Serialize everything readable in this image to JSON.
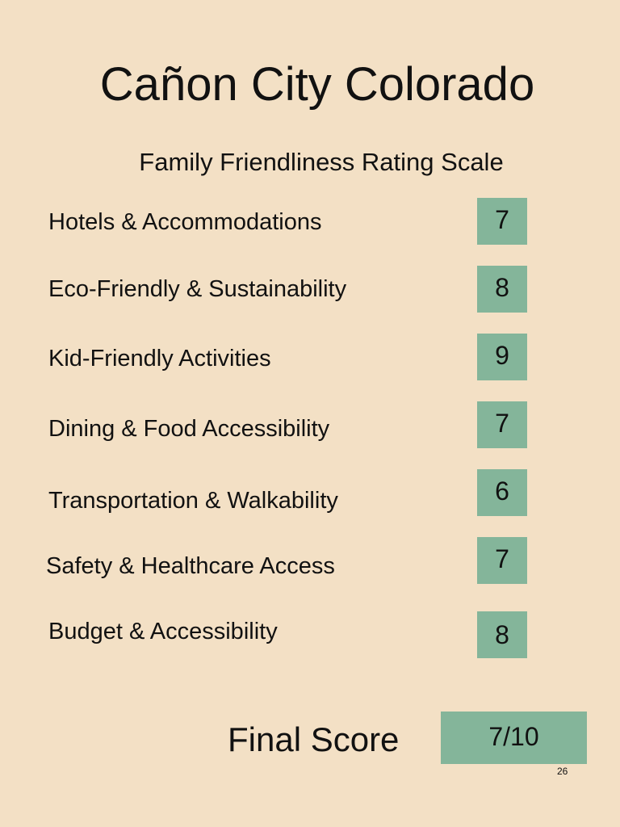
{
  "header": {
    "title": "Cañon City Colorado",
    "subtitle": "Family Friendliness Rating Scale"
  },
  "ratings": [
    {
      "label": "Hotels & Accommodations",
      "score": 7
    },
    {
      "label": "Eco-Friendly & Sustainability",
      "score": 8
    },
    {
      "label": "Kid-Friendly Activities",
      "score": 9
    },
    {
      "label": "Dining & Food Accessibility",
      "score": 7
    },
    {
      "label": "Transportation & Walkability",
      "score": 6
    },
    {
      "label": "Safety & Healthcare Access",
      "score": 7
    },
    {
      "label": "Budget & Accessibility",
      "score": 8
    }
  ],
  "final": {
    "label": "Final Score",
    "score": "7/10"
  },
  "page_number": 26
}
